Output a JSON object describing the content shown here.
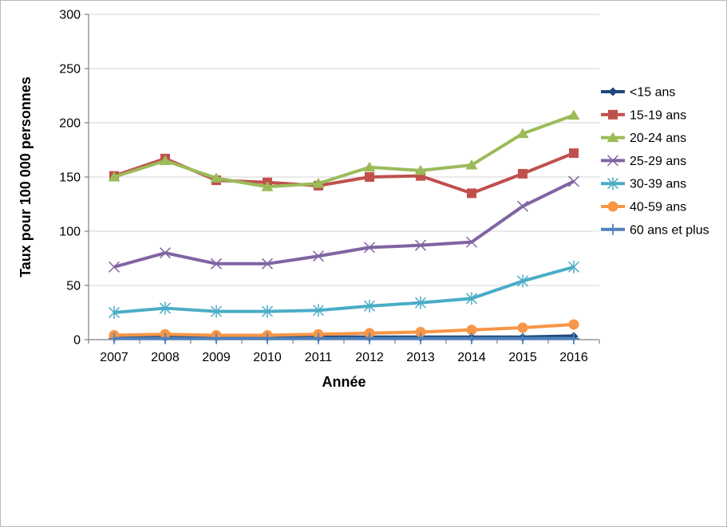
{
  "chart_data": {
    "type": "line",
    "title": "",
    "xlabel": "Année",
    "ylabel": "Taux pour 100 000 personnes",
    "ylim": [
      0,
      300
    ],
    "yticks": [
      0,
      50,
      100,
      150,
      200,
      250,
      300
    ],
    "grid": true,
    "legend_position": "right",
    "categories": [
      "2007",
      "2008",
      "2009",
      "2010",
      "2011",
      "2012",
      "2013",
      "2014",
      "2015",
      "2016"
    ],
    "series": [
      {
        "name": "<15 ans",
        "marker": "diamond",
        "color": "#1F497D",
        "values": [
          2,
          2,
          2,
          2,
          2,
          2,
          2,
          2,
          2,
          3
        ]
      },
      {
        "name": "15-19 ans",
        "marker": "square",
        "color": "#C0504D",
        "values": [
          151,
          167,
          147,
          145,
          142,
          150,
          151,
          135,
          153,
          172
        ]
      },
      {
        "name": "20-24 ans",
        "marker": "triangle",
        "color": "#9BBB59",
        "values": [
          150,
          165,
          149,
          141,
          144,
          159,
          156,
          161,
          190,
          207
        ]
      },
      {
        "name": "25-29 ans",
        "marker": "x",
        "color": "#8064A2",
        "values": [
          67,
          80,
          70,
          70,
          77,
          85,
          87,
          90,
          123,
          146
        ]
      },
      {
        "name": "30-39 ans",
        "marker": "asterisk",
        "color": "#4BACC6",
        "values": [
          25,
          29,
          26,
          26,
          27,
          31,
          34,
          38,
          54,
          67
        ]
      },
      {
        "name": "40-59 ans",
        "marker": "circle",
        "color": "#F79646",
        "values": [
          4,
          5,
          4,
          4,
          5,
          6,
          7,
          9,
          11,
          14
        ]
      },
      {
        "name": "60 ans et plus",
        "marker": "plus",
        "color": "#4F81BD",
        "values": [
          1,
          1,
          1,
          1,
          1,
          1,
          1,
          1,
          1,
          1
        ]
      }
    ],
    "style": {
      "axis_color": "#808080",
      "grid_color": "#D6D6D6",
      "text_color": "#000000"
    }
  }
}
